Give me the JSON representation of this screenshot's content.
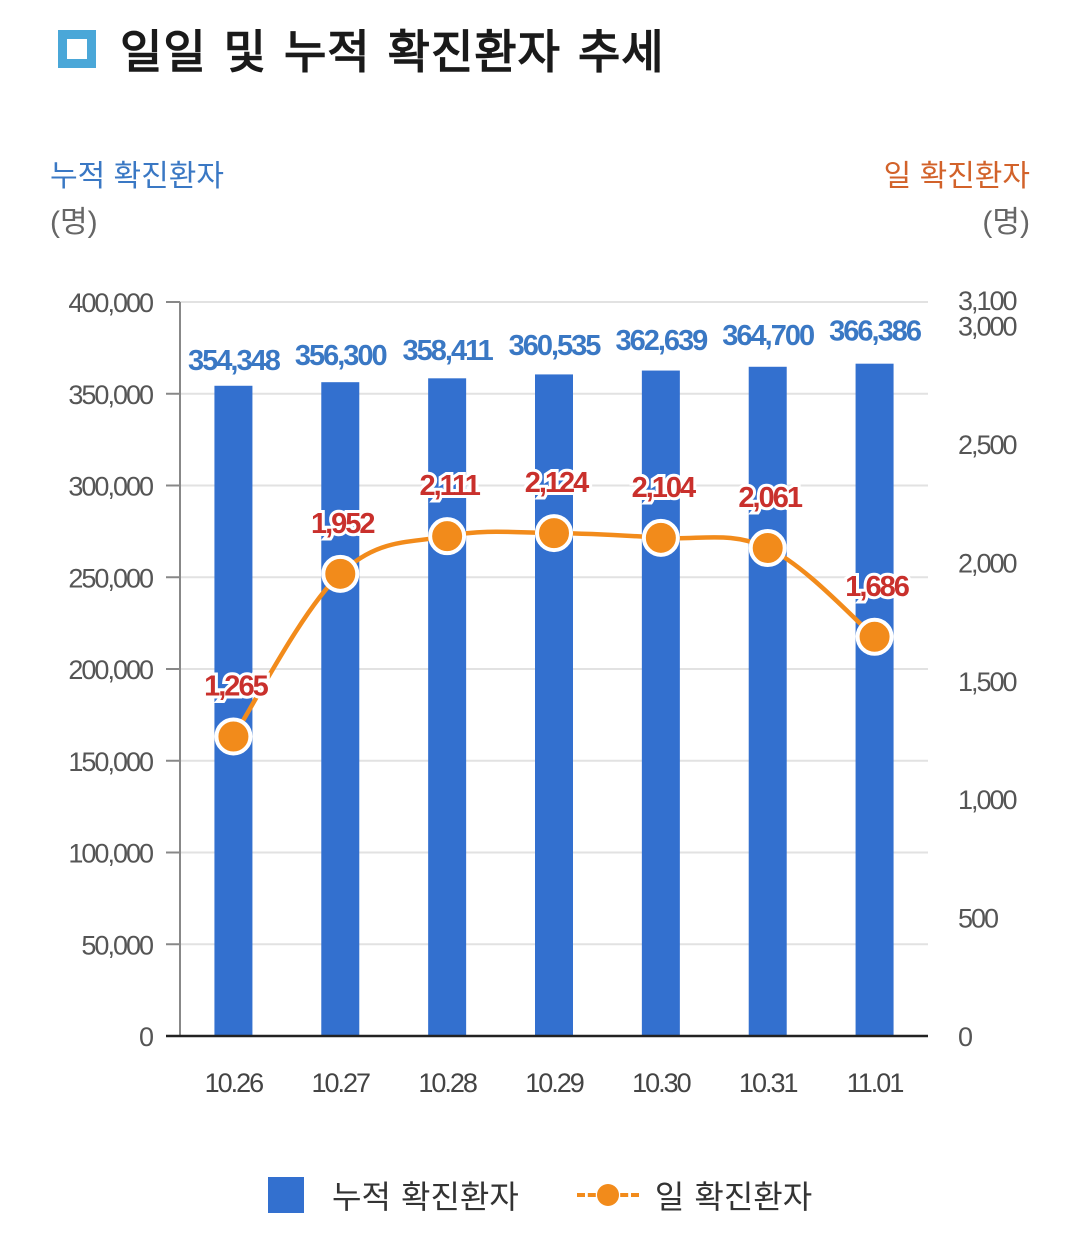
{
  "title": "일일 및 누적 확진환자 추세",
  "colors": {
    "bar": "#3370cf",
    "line": "#f28b1b",
    "left_axis_title": "#3a78c4",
    "right_axis_title": "#d2622a",
    "bar_label": "#3a78c4",
    "line_label": "#c9302c"
  },
  "chart_data": {
    "type": "bar+line",
    "categories": [
      "10.26",
      "10.27",
      "10.28",
      "10.29",
      "10.30",
      "10.31",
      "11.01"
    ],
    "series": [
      {
        "name": "누적 확진환자",
        "type": "bar",
        "axis": "left",
        "values": [
          354348,
          356300,
          358411,
          360535,
          362639,
          364700,
          366386
        ],
        "labels": [
          "354,348",
          "356,300",
          "358,411",
          "360,535",
          "362,639",
          "364,700",
          "366,386"
        ]
      },
      {
        "name": "일 확진환자",
        "type": "line",
        "axis": "right",
        "values": [
          1265,
          1952,
          2111,
          2124,
          2104,
          2061,
          1686
        ],
        "labels": [
          "1,265",
          "1,952",
          "2,111",
          "2,124",
          "2,104",
          "2,061",
          "1,686"
        ]
      }
    ],
    "left_axis": {
      "title": "누적 확진환자",
      "unit": "(명)",
      "range": [
        0,
        400000
      ],
      "ticks": [
        0,
        50000,
        100000,
        150000,
        200000,
        250000,
        300000,
        350000,
        400000
      ],
      "tick_labels": [
        "0",
        "50,000",
        "100,000",
        "150,000",
        "200,000",
        "250,000",
        "300,000",
        "350,000",
        "400,000"
      ]
    },
    "right_axis": {
      "title": "일 확진환자",
      "unit": "(명)",
      "range": [
        0,
        3100
      ],
      "ticks": [
        0,
        500,
        1000,
        1500,
        2000,
        2500,
        3000,
        3100
      ],
      "tick_labels": [
        "0",
        "500",
        "1,000",
        "1,500",
        "2,000",
        "2,500",
        "3,000",
        "3,100"
      ]
    },
    "grid": true,
    "legend_position": "bottom"
  }
}
